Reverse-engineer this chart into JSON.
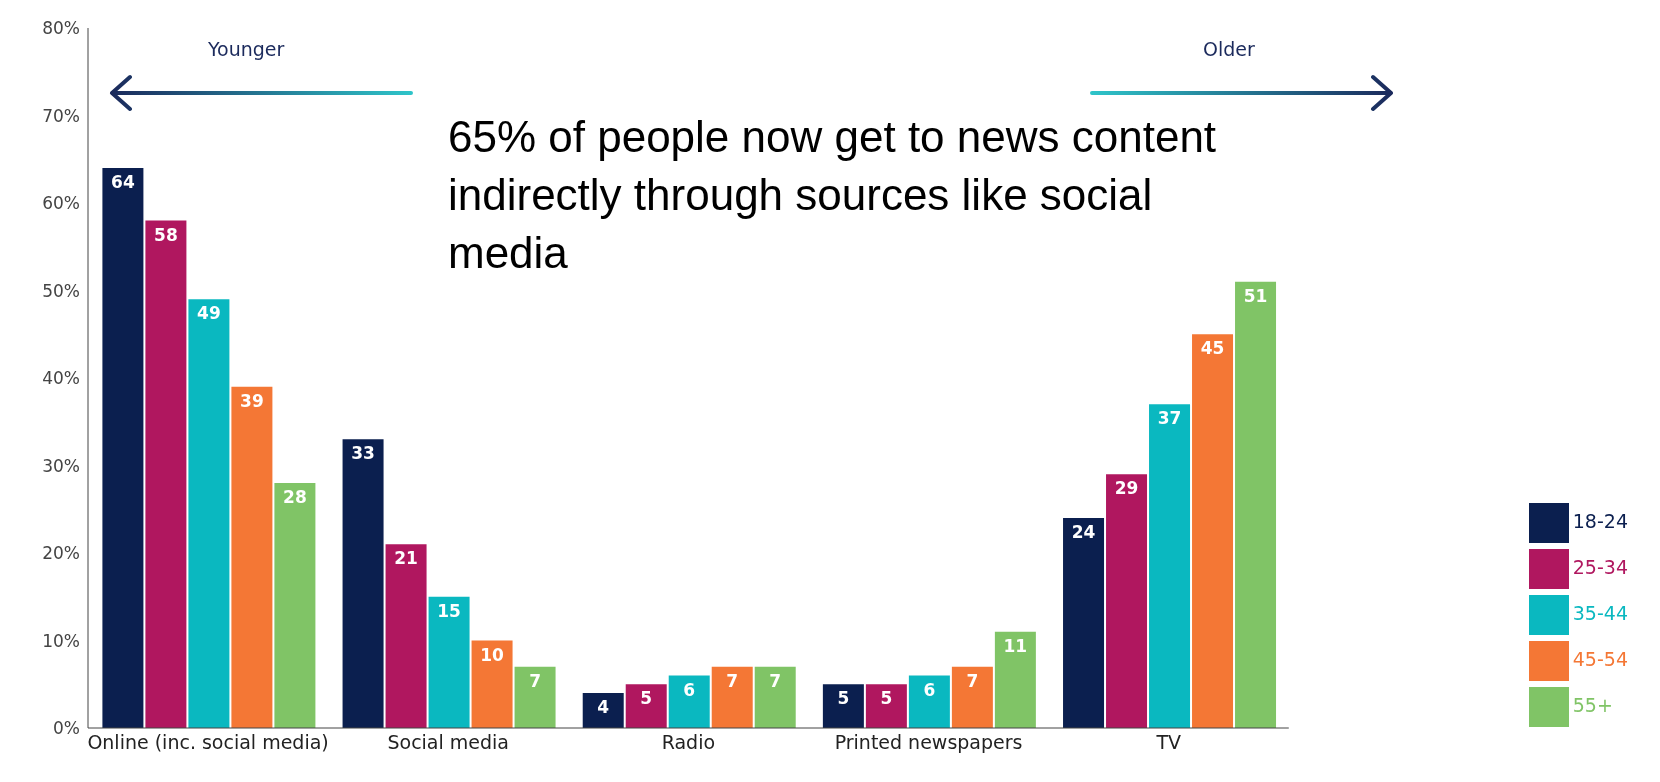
{
  "chart_data": {
    "type": "bar",
    "categories": [
      "Online (inc. social media)",
      "Social media",
      "Radio",
      "Printed newspapers",
      "TV"
    ],
    "series": [
      {
        "name": "18-24",
        "color": "#0b1f4f",
        "values": [
          64,
          33,
          4,
          5,
          24
        ]
      },
      {
        "name": "25-34",
        "color": "#b0175f",
        "values": [
          58,
          21,
          5,
          5,
          29
        ]
      },
      {
        "name": "35-44",
        "color": "#0ab8c0",
        "values": [
          49,
          15,
          6,
          6,
          37
        ]
      },
      {
        "name": "45-54",
        "color": "#f47735",
        "values": [
          39,
          10,
          7,
          7,
          45
        ]
      },
      {
        "name": "55+",
        "color": "#80c466",
        "values": [
          28,
          7,
          7,
          11,
          51
        ]
      }
    ],
    "ylim": [
      0,
      80
    ],
    "yticks": [
      {
        "value": 0,
        "label": "0%"
      },
      {
        "value": 10,
        "label": "10%"
      },
      {
        "value": 20,
        "label": "20%"
      },
      {
        "value": 30,
        "label": "30%"
      },
      {
        "value": 40,
        "label": "40%"
      },
      {
        "value": 50,
        "label": "50%"
      },
      {
        "value": 60,
        "label": "60%"
      },
      {
        "value": 70,
        "label": "70%"
      },
      {
        "value": 80,
        "label": "80%"
      }
    ],
    "data_labels": true,
    "grid": false,
    "legend": "bottom right",
    "annotations": [
      "Younger",
      "Older",
      "65% of people now get to news content indirectly through sources like social media"
    ]
  }
}
